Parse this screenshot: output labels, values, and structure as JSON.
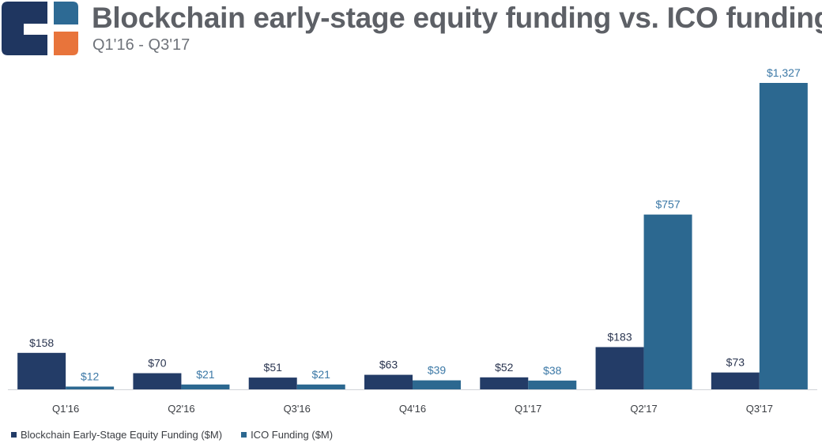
{
  "header": {
    "title": "Blockchain early-stage equity funding vs. ICO funding",
    "subtitle": "Q1'16 - Q3'17"
  },
  "logo": {
    "colors": [
      "#1f3660",
      "#2d6a94",
      "#e8743b"
    ]
  },
  "chart_data": {
    "type": "bar",
    "categories": [
      "Q1'16",
      "Q2'16",
      "Q3'16",
      "Q4'16",
      "Q1'17",
      "Q2'17",
      "Q3'17"
    ],
    "series": [
      {
        "name": "Blockchain Early-Stage Equity Funding ($M)",
        "color": "#233c67",
        "values": [
          158,
          70,
          51,
          63,
          52,
          183,
          73
        ],
        "labels": [
          "$158",
          "$70",
          "$51",
          "$63",
          "$52",
          "$183",
          "$73"
        ]
      },
      {
        "name": "ICO Funding ($M)",
        "color": "#2c6890",
        "values": [
          12,
          21,
          21,
          39,
          38,
          757,
          1327
        ],
        "labels": [
          "$12",
          "$21",
          "$21",
          "$39",
          "$38",
          "$757",
          "$1,327"
        ]
      }
    ],
    "ylim": [
      0,
      1327
    ],
    "grid": false,
    "legend_position": "bottom-left"
  }
}
